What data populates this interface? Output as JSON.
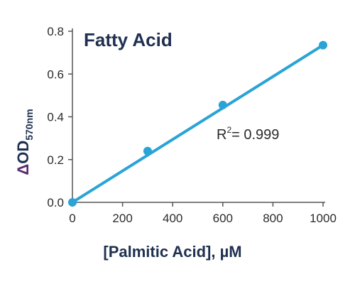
{
  "chart_data": {
    "type": "scatter",
    "title": "Fatty Acid",
    "xlabel": "[Palmitic Acid], µM",
    "ylabel": {
      "symbol": "Δ",
      "main": "OD",
      "subscript": "570nm"
    },
    "xlim": [
      0,
      1000
    ],
    "ylim": [
      0,
      0.8
    ],
    "xticks": [
      "0",
      "200",
      "400",
      "600",
      "800",
      "1000"
    ],
    "yticks": [
      "0.0",
      "0.2",
      "0.4",
      "0.6",
      "0.8"
    ],
    "series": [
      {
        "x": [
          0,
          300,
          600,
          1000
        ],
        "y": [
          0.0,
          0.24,
          0.455,
          0.735
        ],
        "color": "#2aa3d6"
      }
    ],
    "fit_line": {
      "x": [
        0,
        1000
      ],
      "y": [
        0.0,
        0.735
      ],
      "color": "#2aa3d6"
    },
    "annotation": {
      "prefix": "R",
      "superscript": "2",
      "suffix": "= 0.999"
    },
    "grid": false,
    "legend": "none"
  }
}
